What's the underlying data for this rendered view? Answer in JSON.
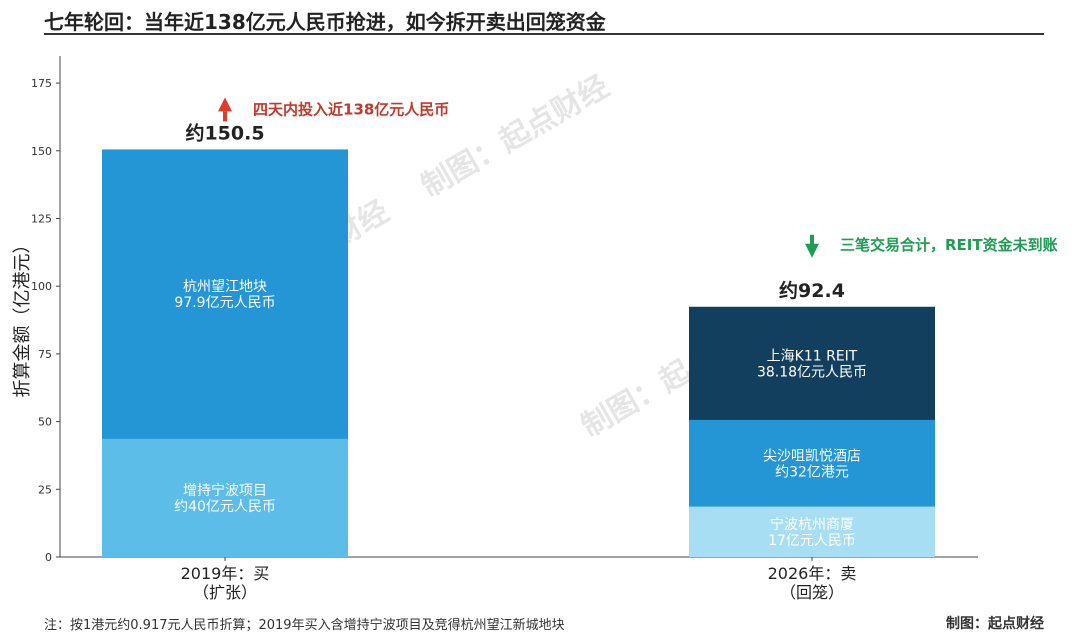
{
  "title": "七年轮回：当年近138亿元人民币抢进，如今拆开卖出回笼资金",
  "footnote": "注：按1港元约0.917元人民币折算；2019年买入含增持宁波项目及竞得杭州望江新城地块",
  "credit": "制图：起点财经",
  "watermark": "制图：起点财经",
  "colors": {
    "up_arrow": "#e03b2b",
    "up_text": "#c0392b",
    "down_arrow": "#1f9d55",
    "down_text": "#1f9d55",
    "axis": "#444444"
  },
  "chart_data": {
    "type": "bar",
    "stacked": true,
    "ylabel": "折算金额（亿港元）",
    "ylim": [
      0,
      185
    ],
    "yticks": [
      0,
      25,
      50,
      75,
      100,
      125,
      150,
      175
    ],
    "grid": false,
    "categories": [
      "2019年：买\n（扩张）",
      "2026年：卖\n（回笼）"
    ],
    "stacks": [
      {
        "total_label": "约150.5",
        "annotation": "四天内投入近138亿元人民币",
        "annotation_direction": "up",
        "segments": [
          {
            "value": 43.6,
            "label": "增持宁波项目\n约40亿元人民币",
            "color": "#5bbde8"
          },
          {
            "value": 106.9,
            "label": "杭州望江地块\n97.9亿元人民币",
            "color": "#2496d6"
          }
        ]
      },
      {
        "total_label": "约92.4",
        "annotation": "三笔交易合计，REIT资金未到账",
        "annotation_direction": "down",
        "segments": [
          {
            "value": 18.6,
            "label": "宁波杭州商厦\n17亿元人民币",
            "color": "#a8def4"
          },
          {
            "value": 32.0,
            "label": "尖沙咀凯悦酒店\n约32亿港元",
            "color": "#2496d6"
          },
          {
            "value": 41.8,
            "label": "上海K11 REIT\n38.18亿元人民币",
            "color": "#133f5e"
          }
        ]
      }
    ]
  }
}
